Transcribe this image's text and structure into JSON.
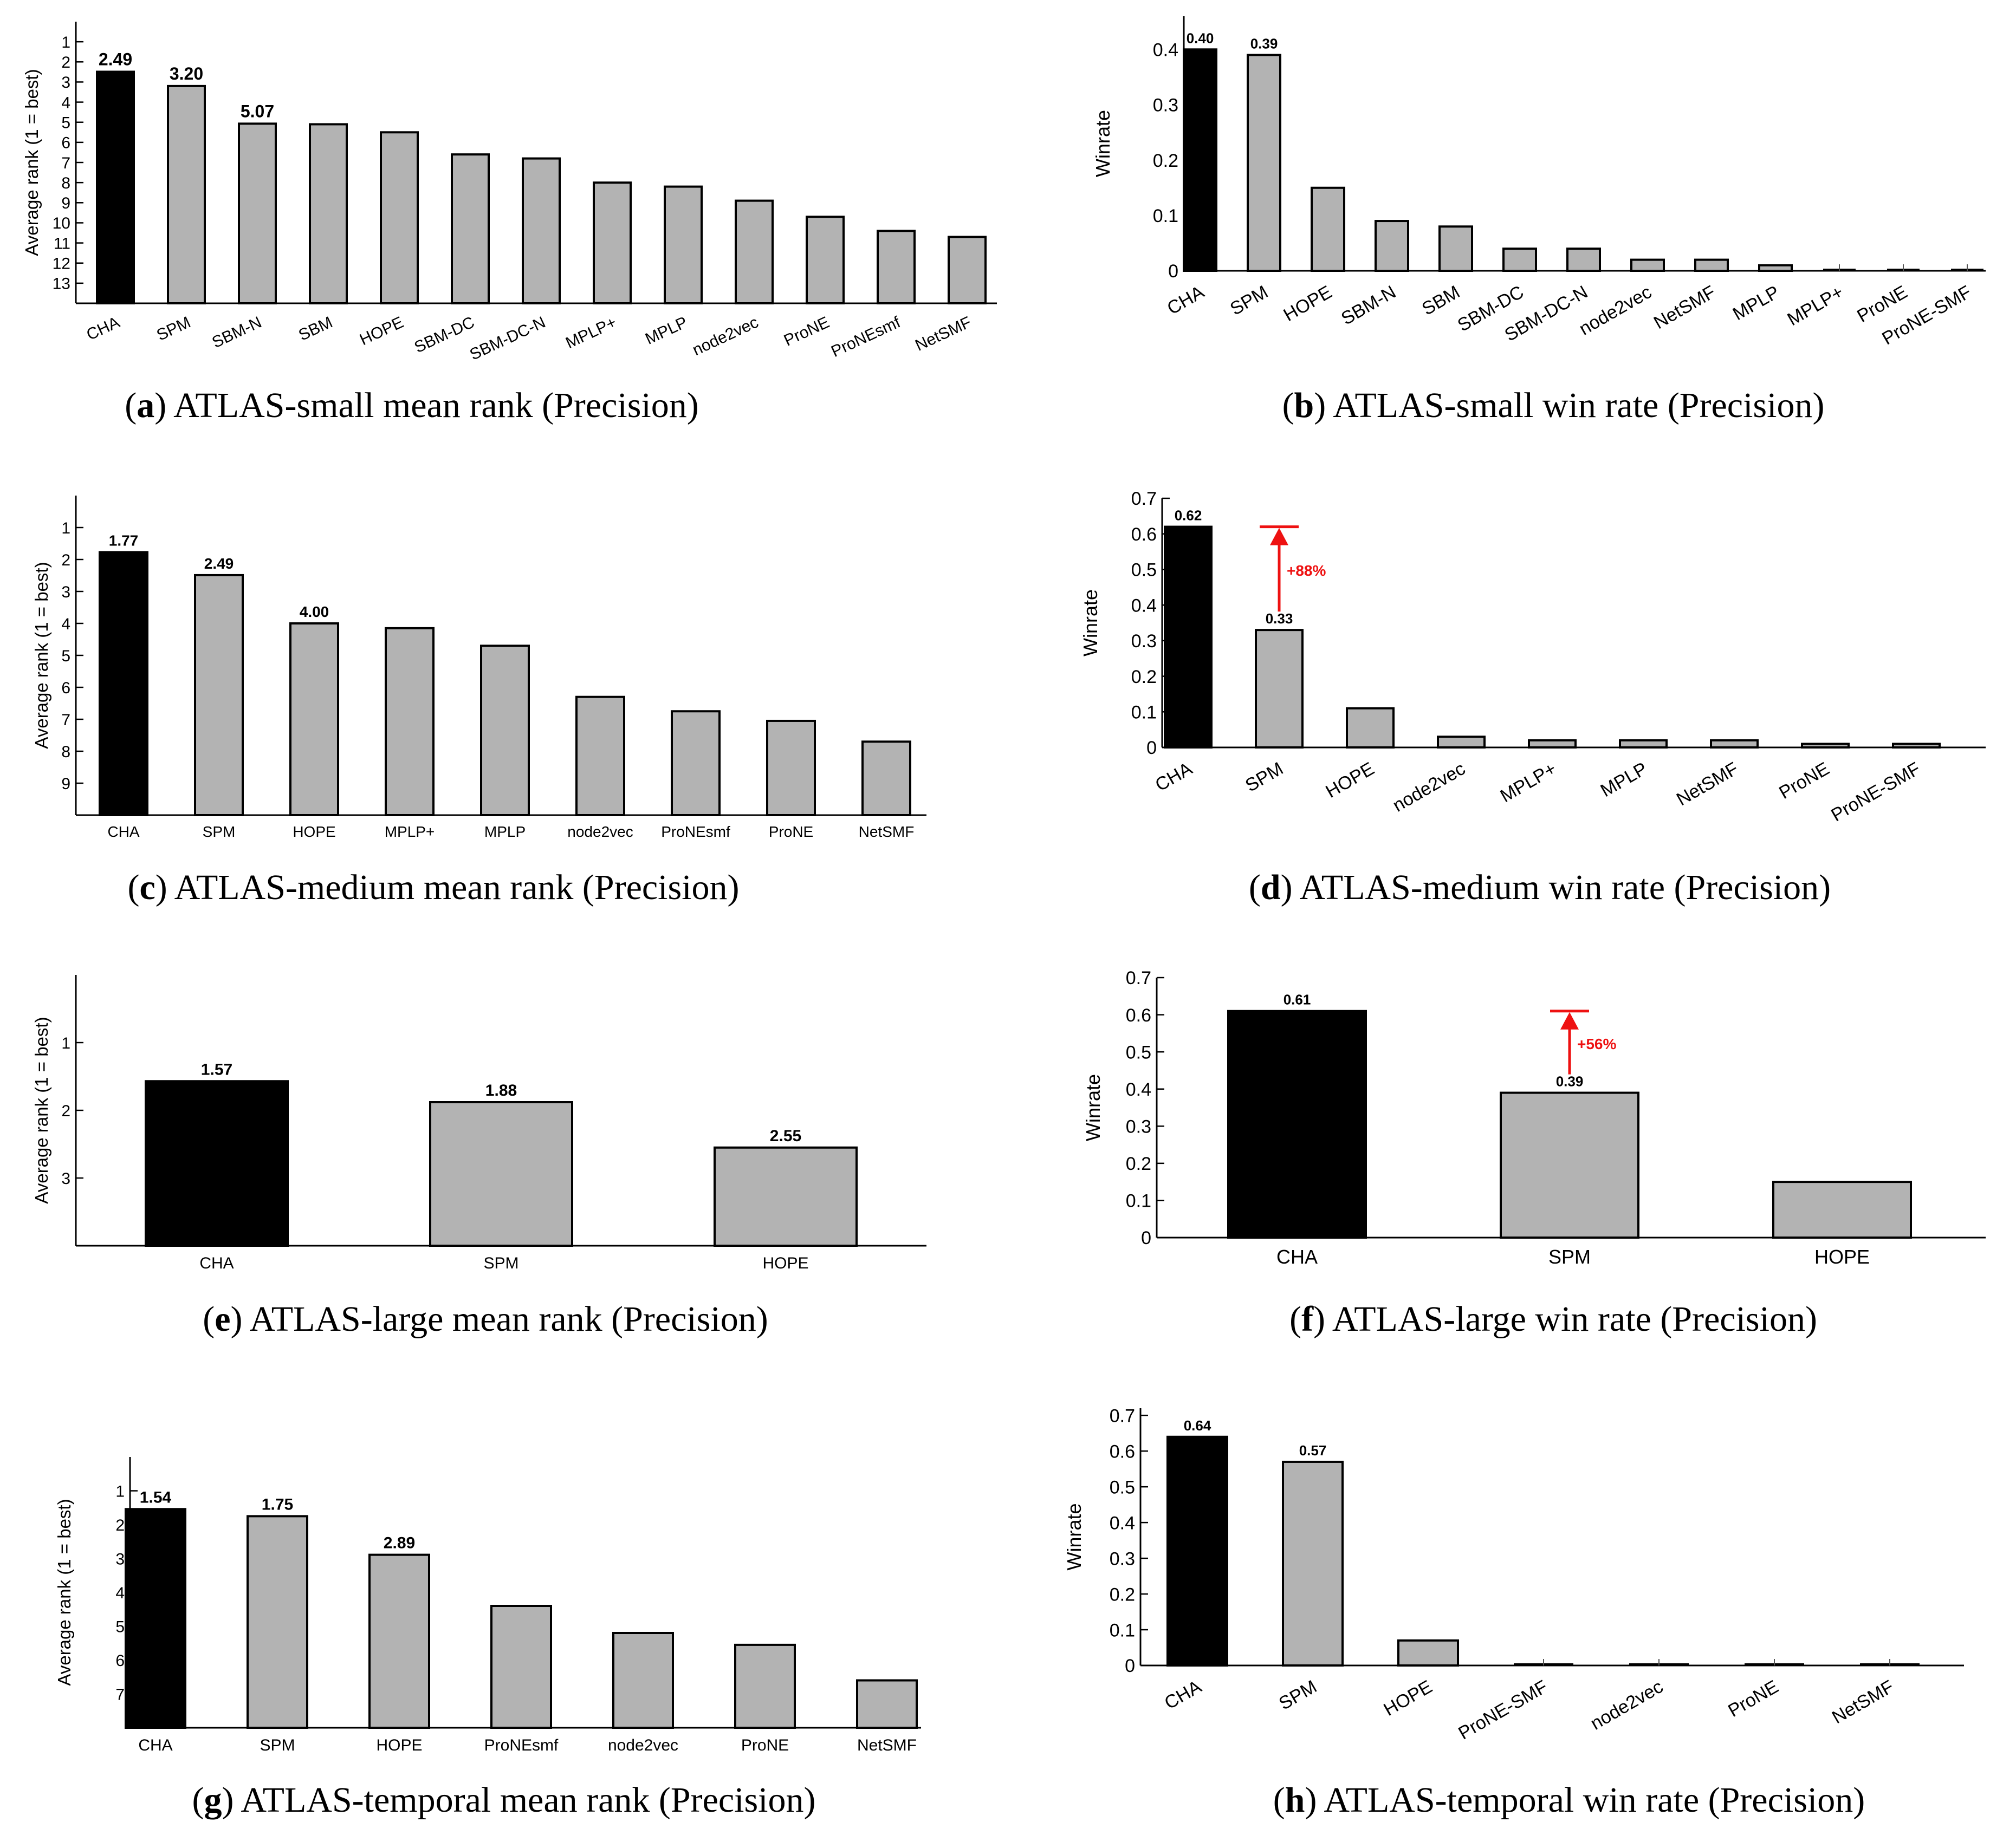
{
  "colors": {
    "highlight": "#000000",
    "bar": "#b3b3b3",
    "annotation": "#ee1111",
    "axis": "#000000"
  },
  "panels": [
    {
      "caption_letter": "a",
      "caption_text": "ATLAS-small mean rank (Precision)",
      "chart_data": {
        "type": "bar",
        "title": "",
        "ylabel": "Average rank (1 = best)",
        "y_inverted": true,
        "ylim": [
          0,
          14
        ],
        "yticks": [
          1,
          2,
          3,
          4,
          5,
          6,
          7,
          8,
          9,
          10,
          11,
          12,
          13
        ],
        "rotated_labels": true,
        "categories": [
          "CHA",
          "SPM",
          "SBM-N",
          "SBM",
          "HOPE",
          "SBM-DC",
          "SBM-DC-N",
          "MPLP+",
          "MPLP",
          "node2vec",
          "ProNE",
          "ProNEsmf",
          "NetSMF"
        ],
        "values": [
          2.49,
          3.2,
          5.07,
          5.1,
          5.5,
          6.6,
          6.8,
          8.0,
          8.2,
          8.9,
          9.7,
          10.4,
          10.7
        ],
        "data_labels": [
          "2.49",
          "3.20",
          "5.07",
          "",
          "",
          "",
          "",
          "",
          "",
          "",
          "",
          "",
          ""
        ],
        "highlight_index": 0,
        "annotation": null
      }
    },
    {
      "caption_letter": "b",
      "caption_text": "ATLAS-small win rate (Precision)",
      "chart_data": {
        "type": "bar",
        "title": "",
        "ylabel": "Winrate",
        "y_inverted": false,
        "ylim": [
          0,
          0.46
        ],
        "yticks": [
          0,
          0.1,
          0.2,
          0.3,
          0.4
        ],
        "ytick_labels": [
          "0",
          "0.1",
          "0.2",
          "0.3",
          "0.4"
        ],
        "rotated_labels": true,
        "categories": [
          "CHA",
          "SPM",
          "HOPE",
          "SBM-N",
          "SBM",
          "SBM-DC",
          "SBM-DC-N",
          "node2vec",
          "NetSMF",
          "MPLP",
          "MPLP+",
          "ProNE",
          "ProNE-SMF"
        ],
        "values": [
          0.4,
          0.39,
          0.15,
          0.09,
          0.08,
          0.04,
          0.04,
          0.02,
          0.02,
          0.01,
          0.0,
          0.0,
          0.0
        ],
        "data_labels": [
          "0.40",
          "0.39",
          "",
          "",
          "",
          "",
          "",
          "",
          "",
          "",
          "",
          "",
          ""
        ],
        "highlight_index": 0,
        "annotation": null
      }
    },
    {
      "caption_letter": "c",
      "caption_text": "ATLAS-medium mean rank (Precision)",
      "chart_data": {
        "type": "bar",
        "title": "",
        "ylabel": "Average rank (1 = best)",
        "y_inverted": true,
        "ylim": [
          0,
          10
        ],
        "yticks": [
          1,
          2,
          3,
          4,
          5,
          6,
          7,
          8,
          9
        ],
        "rotated_labels": false,
        "categories": [
          "CHA",
          "SPM",
          "HOPE",
          "MPLP+",
          "MPLP",
          "node2vec",
          "ProNEsmf",
          "ProNE",
          "NetSMF"
        ],
        "values": [
          1.77,
          2.49,
          4.0,
          4.15,
          4.7,
          6.3,
          6.75,
          7.05,
          7.7
        ],
        "data_labels": [
          "1.77",
          "2.49",
          "4.00",
          "",
          "",
          "",
          "",
          "",
          ""
        ],
        "highlight_index": 0,
        "annotation": null
      }
    },
    {
      "caption_letter": "d",
      "caption_text": "ATLAS-medium win rate (Precision)",
      "chart_data": {
        "type": "bar",
        "title": "",
        "ylabel": "Winrate",
        "y_inverted": false,
        "ylim": [
          0,
          0.7
        ],
        "yticks": [
          0,
          0.1,
          0.2,
          0.3,
          0.4,
          0.5,
          0.6,
          0.7
        ],
        "ytick_labels": [
          "0",
          "0.1",
          "0.2",
          "0.3",
          "0.4",
          "0.5",
          "0.6",
          "0.7"
        ],
        "rotated_labels": true,
        "categories": [
          "CHA",
          "SPM",
          "HOPE",
          "node2vec",
          "MPLP+",
          "MPLP",
          "NetSMF",
          "ProNE",
          "ProNE-SMF"
        ],
        "values": [
          0.62,
          0.33,
          0.11,
          0.03,
          0.02,
          0.02,
          0.02,
          0.01,
          0.01
        ],
        "data_labels": [
          "0.62",
          "0.33",
          "",
          "",
          "",
          "",
          "",
          "",
          ""
        ],
        "highlight_index": 0,
        "annotation": {
          "bar_index": 1,
          "from": 0.33,
          "to": 0.62,
          "label": "+88%"
        }
      }
    },
    {
      "caption_letter": "e",
      "caption_text": "ATLAS-large mean rank (Precision)",
      "chart_data": {
        "type": "bar",
        "title": "",
        "ylabel": "Average rank (1 = best)",
        "y_inverted": true,
        "ylim": [
          0,
          4
        ],
        "yticks": [
          1,
          2,
          3
        ],
        "rotated_labels": false,
        "categories": [
          "CHA",
          "SPM",
          "HOPE"
        ],
        "values": [
          1.57,
          1.88,
          2.55
        ],
        "data_labels": [
          "1.57",
          "1.88",
          "2.55"
        ],
        "highlight_index": 0,
        "annotation": null
      }
    },
    {
      "caption_letter": "f",
      "caption_text": "ATLAS-large win rate (Precision)",
      "chart_data": {
        "type": "bar",
        "title": "",
        "ylabel": "Winrate",
        "y_inverted": false,
        "ylim": [
          0,
          0.7
        ],
        "yticks": [
          0,
          0.1,
          0.2,
          0.3,
          0.4,
          0.5,
          0.6,
          0.7
        ],
        "ytick_labels": [
          "0",
          "0.1",
          "0.2",
          "0.3",
          "0.4",
          "0.5",
          "0.6",
          "0.7"
        ],
        "rotated_labels": false,
        "categories": [
          "CHA",
          "SPM",
          "HOPE"
        ],
        "values": [
          0.61,
          0.39,
          0.15
        ],
        "data_labels": [
          "0.61",
          "0.39",
          ""
        ],
        "highlight_index": 0,
        "annotation": {
          "bar_index": 1,
          "from": 0.39,
          "to": 0.61,
          "label": "+56%"
        }
      }
    },
    {
      "caption_letter": "g",
      "caption_text": "ATLAS-temporal mean rank (Precision)",
      "chart_data": {
        "type": "bar",
        "title": "",
        "ylabel": "Average rank (1 = best)",
        "y_inverted": true,
        "ylim": [
          0,
          8
        ],
        "yticks": [
          1,
          2,
          3,
          4,
          5,
          6,
          7
        ],
        "rotated_labels": false,
        "categories": [
          "CHA",
          "SPM",
          "HOPE",
          "ProNEsmf",
          "node2vec",
          "ProNE",
          "NetSMF"
        ],
        "values": [
          1.54,
          1.75,
          2.89,
          4.4,
          5.2,
          5.55,
          6.6
        ],
        "data_labels": [
          "1.54",
          "1.75",
          "2.89",
          "",
          "",
          "",
          ""
        ],
        "highlight_index": 0,
        "annotation": null
      }
    },
    {
      "caption_letter": "h",
      "caption_text": "ATLAS-temporal win rate (Precision)",
      "chart_data": {
        "type": "bar",
        "title": "",
        "ylabel": "Winrate",
        "y_inverted": false,
        "ylim": [
          0,
          0.72
        ],
        "yticks": [
          0,
          0.1,
          0.2,
          0.3,
          0.4,
          0.5,
          0.6,
          0.7
        ],
        "ytick_labels": [
          "0",
          "0.1",
          "0.2",
          "0.3",
          "0.4",
          "0.5",
          "0.6",
          "0.7"
        ],
        "rotated_labels": true,
        "categories": [
          "CHA",
          "SPM",
          "HOPE",
          "ProNE-SMF",
          "node2vec",
          "ProNE",
          "NetSMF"
        ],
        "values": [
          0.64,
          0.57,
          0.07,
          0.0,
          0.0,
          0.0,
          0.0
        ],
        "data_labels": [
          "0.64",
          "0.57",
          "",
          "",
          "",
          "",
          ""
        ],
        "highlight_index": 0,
        "annotation": null
      }
    }
  ]
}
